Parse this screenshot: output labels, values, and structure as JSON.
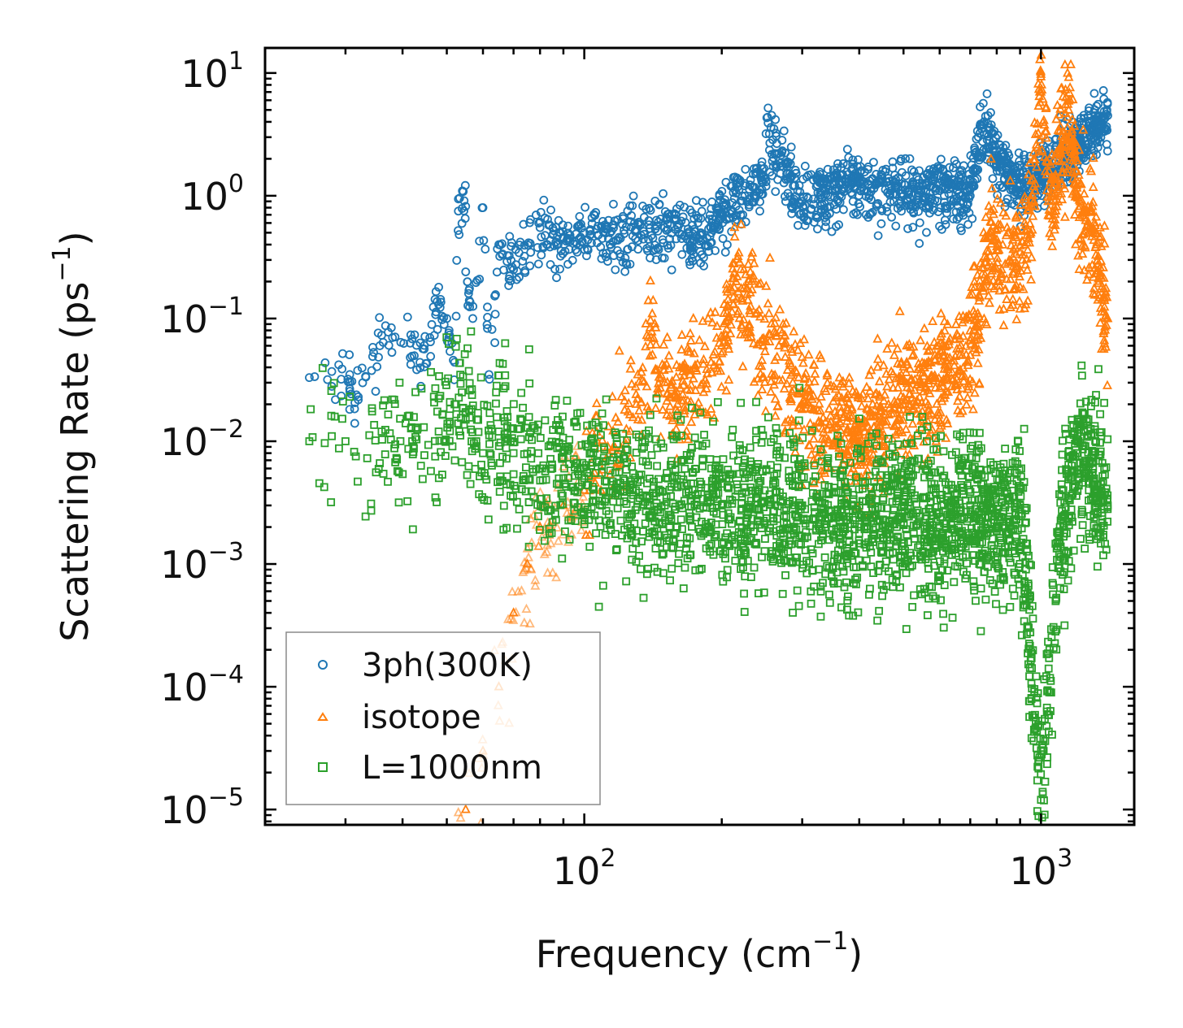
{
  "chart_data": {
    "type": "scatter",
    "xscale": "log",
    "yscale": "log",
    "xlim": [
      20,
      1600
    ],
    "ylim": [
      7.5e-06,
      16
    ],
    "xlabel": "Frequency (cm",
    "xlabel_sup": "−1",
    "xlabel_end": ")",
    "ylabel": "Scattering Rate (ps",
    "ylabel_sup": "−1",
    "ylabel_end": ")",
    "x_ticks": [
      {
        "base": "10",
        "exp": "2",
        "value": 100
      },
      {
        "base": "10",
        "exp": "3",
        "value": 1000
      }
    ],
    "y_ticks": [
      {
        "base": "10",
        "exp": "1",
        "value": 10
      },
      {
        "base": "10",
        "exp": "0",
        "value": 1
      },
      {
        "base": "10",
        "exp": "−1",
        "value": 0.1
      },
      {
        "base": "10",
        "exp": "−2",
        "value": 0.01
      },
      {
        "base": "10",
        "exp": "−3",
        "value": 0.001
      },
      {
        "base": "10",
        "exp": "−4",
        "value": 0.0001
      },
      {
        "base": "10",
        "exp": "−5",
        "value": 1e-05
      }
    ],
    "legend_position": "lower-left",
    "series": [
      {
        "name": "3ph(300K)",
        "marker": "circle",
        "color": "#1f77b4",
        "sample_points": [
          [
            25,
            0.033
          ],
          [
            28,
            0.037
          ],
          [
            29,
            0.042
          ],
          [
            28,
            0.028
          ],
          [
            32,
            0.023
          ],
          [
            36,
            0.073
          ],
          [
            45,
            0.043
          ],
          [
            48,
            0.18
          ],
          [
            48,
            0.13
          ],
          [
            50,
            0.1
          ],
          [
            52,
            0.044
          ],
          [
            53,
            0.75
          ],
          [
            55,
            0.82
          ],
          [
            55,
            0.24
          ],
          [
            56,
            0.14
          ],
          [
            57,
            0.1
          ],
          [
            60,
            0.8
          ],
          [
            62,
            0.032
          ],
          [
            65,
            0.4
          ],
          [
            70,
            0.25
          ],
          [
            80,
            0.55
          ],
          [
            90,
            0.45
          ],
          [
            100,
            0.5
          ],
          [
            120,
            0.45
          ],
          [
            150,
            0.55
          ],
          [
            180,
            0.5
          ],
          [
            200,
            0.7
          ],
          [
            250,
            1.3
          ],
          [
            250,
            3.2
          ],
          [
            300,
            0.9
          ],
          [
            400,
            1.3
          ],
          [
            500,
            1.0
          ],
          [
            600,
            1.1
          ],
          [
            700,
            1.0
          ],
          [
            750,
            4.0
          ],
          [
            800,
            2.0
          ],
          [
            900,
            1.2
          ],
          [
            1000,
            1.5
          ],
          [
            1100,
            2.0
          ],
          [
            1200,
            2.5
          ],
          [
            1300,
            3.5
          ],
          [
            1400,
            4.5
          ]
        ]
      },
      {
        "name": "isotope",
        "marker": "triangle",
        "color": "#ff7f0e",
        "sample_points": [
          [
            55,
            1e-05
          ],
          [
            60,
            3e-05
          ],
          [
            65,
            0.0001
          ],
          [
            70,
            0.0004
          ],
          [
            75,
            0.001
          ],
          [
            80,
            0.002
          ],
          [
            90,
            0.003
          ],
          [
            100,
            0.004
          ],
          [
            130,
            0.02
          ],
          [
            140,
            0.07
          ],
          [
            150,
            0.03
          ],
          [
            160,
            0.02
          ],
          [
            200,
            0.06
          ],
          [
            215,
            0.2
          ],
          [
            300,
            0.02
          ],
          [
            400,
            0.01
          ],
          [
            500,
            0.02
          ],
          [
            700,
            0.05
          ],
          [
            780,
            0.5
          ],
          [
            820,
            0.25
          ],
          [
            950,
            0.5
          ],
          [
            1000,
            7.0
          ],
          [
            1050,
            1.0
          ],
          [
            1150,
            5.0
          ],
          [
            1200,
            1.0
          ],
          [
            1300,
            0.5
          ],
          [
            1400,
            0.1
          ]
        ]
      },
      {
        "name": "L=1000nm",
        "marker": "square",
        "color": "#2ca02c",
        "sample_points": [
          [
            25,
            0.01
          ],
          [
            28,
            0.011
          ],
          [
            30,
            0.01
          ],
          [
            36,
            0.012
          ],
          [
            42,
            0.01
          ],
          [
            48,
            0.012
          ],
          [
            52,
            0.02
          ],
          [
            55,
            0.015
          ],
          [
            58,
            0.01
          ],
          [
            60,
            0.008
          ],
          [
            65,
            0.012
          ],
          [
            70,
            0.008
          ],
          [
            80,
            0.006
          ],
          [
            90,
            0.005
          ],
          [
            100,
            0.005
          ],
          [
            120,
            0.004
          ],
          [
            150,
            0.003
          ],
          [
            200,
            0.003
          ],
          [
            300,
            0.003
          ],
          [
            400,
            0.002
          ],
          [
            500,
            0.003
          ],
          [
            600,
            0.002
          ],
          [
            700,
            0.003
          ],
          [
            800,
            0.002
          ],
          [
            900,
            0.003
          ],
          [
            1000,
            1.2e-05
          ],
          [
            1100,
            0.002
          ],
          [
            1200,
            0.008
          ],
          [
            1300,
            0.006
          ],
          [
            1400,
            0.003
          ]
        ]
      }
    ]
  },
  "colors": {
    "blue": "#1f77b4",
    "orange": "#ff7f0e",
    "green": "#2ca02c"
  }
}
